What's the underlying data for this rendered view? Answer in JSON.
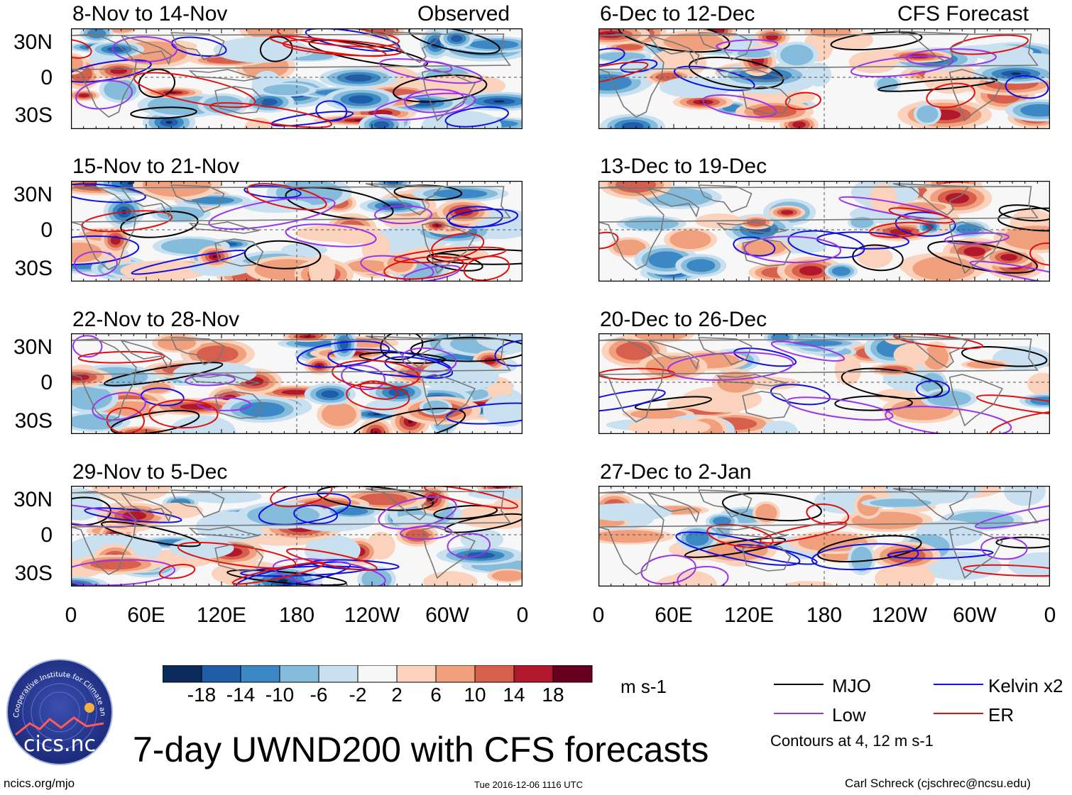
{
  "title": "7-day UWND200 with CFS forecasts",
  "observed_label": "Observed",
  "forecast_label": "CFS Forecast",
  "lat_labels": [
    "30N",
    "0",
    "30S"
  ],
  "lon_labels": [
    "0",
    "60E",
    "120E",
    "180",
    "120W",
    "60W",
    "0"
  ],
  "panels_left": [
    "8-Nov to 14-Nov",
    "15-Nov to 21-Nov",
    "22-Nov to 28-Nov",
    "29-Nov to 5-Dec"
  ],
  "panels_right": [
    "6-Dec to 12-Dec",
    "13-Dec to 19-Dec",
    "20-Dec to 26-Dec",
    "27-Dec to 2-Jan"
  ],
  "colorbar": {
    "ticks": [
      "-18",
      "-14",
      "-10",
      "-6",
      "-2",
      "2",
      "6",
      "10",
      "14",
      "18"
    ],
    "units": "m s-1",
    "colors": [
      "#0b2a5c",
      "#1f5da8",
      "#3b88c4",
      "#85bcdc",
      "#c8e0f0",
      "#f7f7f7",
      "#fbd2bb",
      "#f0a07c",
      "#d6604d",
      "#b2182b",
      "#67001f"
    ]
  },
  "legend": {
    "items": [
      {
        "label": "MJO",
        "color": "#000000"
      },
      {
        "label": "Kelvin x2",
        "color": "#1010e0"
      },
      {
        "label": "Low",
        "color": "#9933ee"
      },
      {
        "label": "ER",
        "color": "#e01010"
      }
    ],
    "note": "Contours at 4, 12 m s-1"
  },
  "logo_text": "cics.nc",
  "logo_ring_text": "Cooperative Institute for Climate and Satellites",
  "footer": {
    "left": "ncics.org/mjo",
    "center": "Tue 2016-12-06 1116 UTC",
    "right": "Carl Schreck (cjschrec@ncsu.edu)"
  }
}
